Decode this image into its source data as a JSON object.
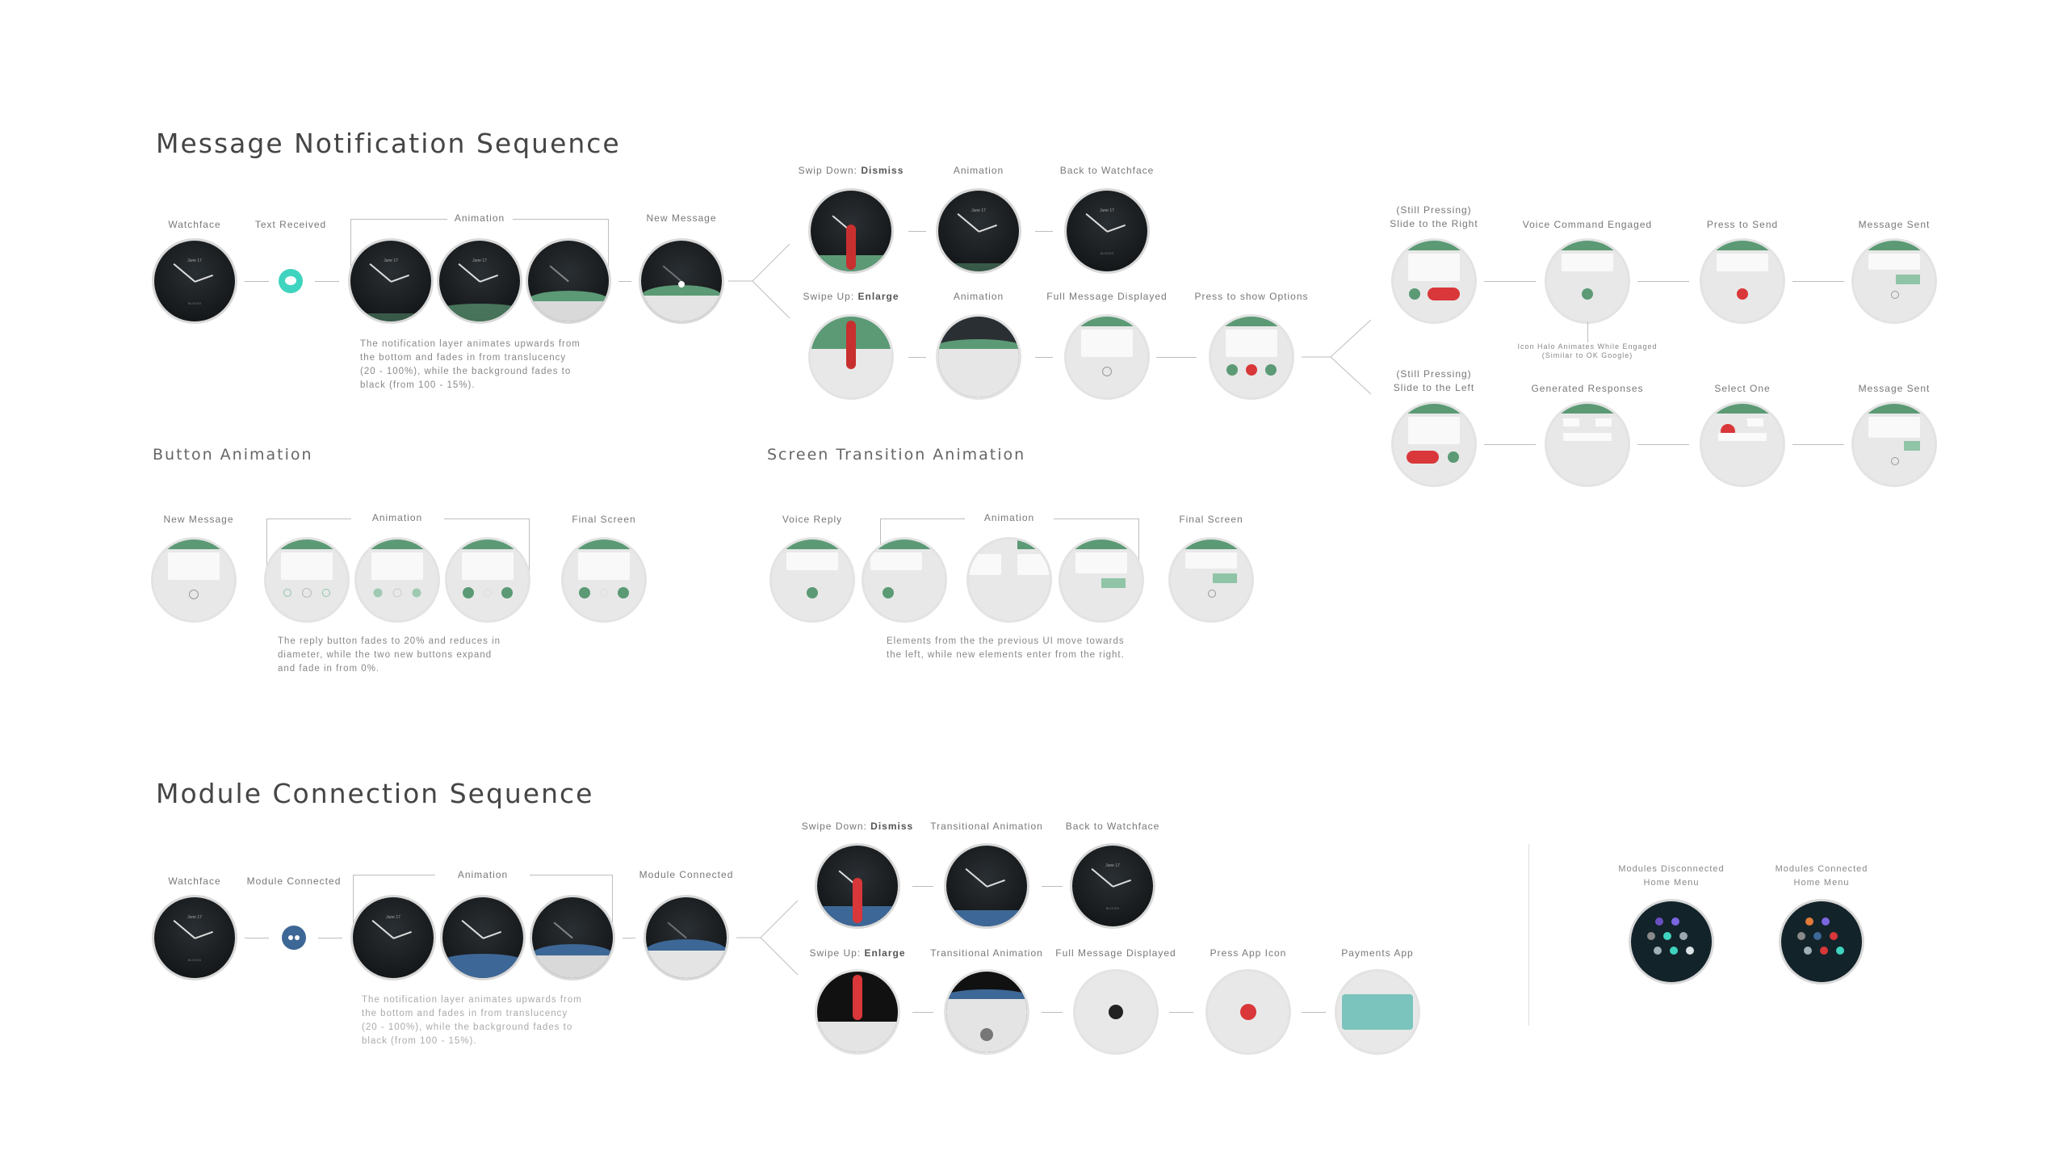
{
  "sections": {
    "message": "Message Notification Sequence",
    "button": "Button Animation",
    "screen": "Screen Transition Animation",
    "module": "Module Connection Sequence"
  },
  "msg": {
    "watchface": "Watchface",
    "text_received": "Text Received",
    "animation": "Animation",
    "new_message": "New Message",
    "desc": "The notification layer animates upwards from\nthe bottom and fades in from translucency\n(20 - 100%), while the background fades to\nblack (from 100 - 15%).",
    "swipe_down_prefix": "Swip Down: ",
    "swipe_down_strong": "Dismiss",
    "animation2": "Animation",
    "back_to_watchface": "Back to Watchface",
    "swipe_up_prefix": "Swipe Up: ",
    "swipe_up_strong": "Enlarge",
    "animation3": "Animation",
    "full_message": "Full Message Displayed",
    "press_options": "Press to show Options",
    "still_right": "(Still Pressing)\nSlide to the Right",
    "voice_engaged": "Voice Command Engaged",
    "press_send": "Press to Send",
    "message_sent": "Message Sent",
    "icon_note": "Icon Halo Animates While Engaged\n(Similar to OK Google)",
    "still_left": "(Still Pressing)\nSlide to the Left",
    "generated": "Generated Responses",
    "select_one": "Select One",
    "message_sent2": "Message Sent"
  },
  "btn": {
    "new_message": "New Message",
    "animation": "Animation",
    "final": "Final Screen",
    "desc": "The reply button fades to 20% and reduces in\ndiameter, while the two new buttons expand\nand fade in from 0%."
  },
  "scr": {
    "voice_reply": "Voice Reply",
    "animation": "Animation",
    "final": "Final Screen",
    "desc": "Elements from the the previous UI move towards\nthe left, while new elements enter from the right."
  },
  "mod": {
    "watchface": "Watchface",
    "module_connected": "Module Connected",
    "animation": "Animation",
    "module_connected2": "Module Connected",
    "desc": "The notification layer animates upwards from\nthe bottom and fades in from translucency\n(20 - 100%), while the background fades to\nblack (from 100 - 15%).",
    "swipe_down_prefix": "Swipe Down: ",
    "swipe_down_strong": "Dismiss",
    "transitional": "Transitional Animation",
    "back_to_watchface": "Back to Watchface",
    "swipe_up_prefix": "Swipe Up: ",
    "swipe_up_strong": "Enlarge",
    "transitional2": "Transitional Animation",
    "full_message": "Full Message Displayed",
    "press_app": "Press App Icon",
    "payments": "Payments App",
    "disconnected": "Modules Disconnected\nHome Menu",
    "connected": "Modules Connected\nHome Menu"
  },
  "colors": {
    "accent_green": "#5b9a75",
    "accent_teal": "#3fd4bf",
    "accent_blue": "#3d6796",
    "alert_red": "#d9373a"
  }
}
